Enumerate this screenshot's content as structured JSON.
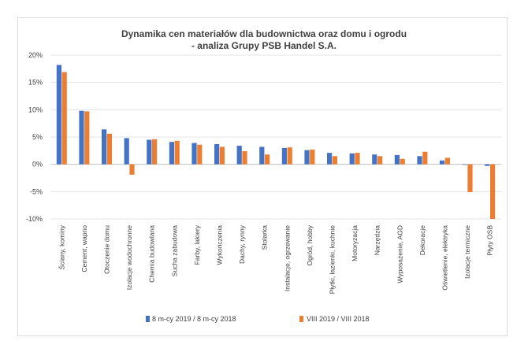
{
  "chart_data": {
    "type": "bar",
    "title": "Dynamika cen materiałów dla budownictwa oraz domu i ogrodu",
    "subtitle": "- analiza Grupy PSB Handel S.A.",
    "ylim": [
      -10,
      20
    ],
    "yticks": [
      "20%",
      "15%",
      "10%",
      "5%",
      "0%",
      "-5%",
      "-10%"
    ],
    "ytick_values": [
      20,
      15,
      10,
      5,
      0,
      -5,
      -10
    ],
    "grid": true,
    "legend_position": "bottom",
    "categories": [
      "Ściany, kominy",
      "Cement, wapno",
      "Otoczenie domu",
      "Izolacje wodochronne",
      "Chemia budowlana",
      "Sucha zabudowa",
      "Farby, lakiery",
      "Wykończenia",
      "Dachy, rynny",
      "Stolarka",
      "Instalacje, ogrzewanie",
      "Ogród, hobby",
      "Płytki, łazienki, kuchnie",
      "Motoryzacja",
      "Narzędzia",
      "Wyposażenie, AGD",
      "Dekoracje",
      "Oświetlenie, elektryka",
      "Izolacje termiczne",
      "Płyty OSB"
    ],
    "series": [
      {
        "name": "8 m-cy 2019 / 8 m-cy 2018",
        "color": "#4472c4",
        "values": [
          18.2,
          9.8,
          6.4,
          4.8,
          4.5,
          4.1,
          3.9,
          3.7,
          3.4,
          3.2,
          3.0,
          2.6,
          2.1,
          2.0,
          1.8,
          1.7,
          1.5,
          0.7,
          -0.1,
          -0.3
        ]
      },
      {
        "name": "VIII 2019 / VIII 2018",
        "color": "#ed7d31",
        "values": [
          16.9,
          9.7,
          5.6,
          -1.9,
          4.6,
          4.3,
          3.6,
          3.2,
          2.4,
          1.8,
          3.1,
          2.7,
          1.5,
          2.1,
          1.5,
          1.0,
          2.3,
          1.2,
          -5.1,
          -10.0
        ]
      }
    ]
  }
}
